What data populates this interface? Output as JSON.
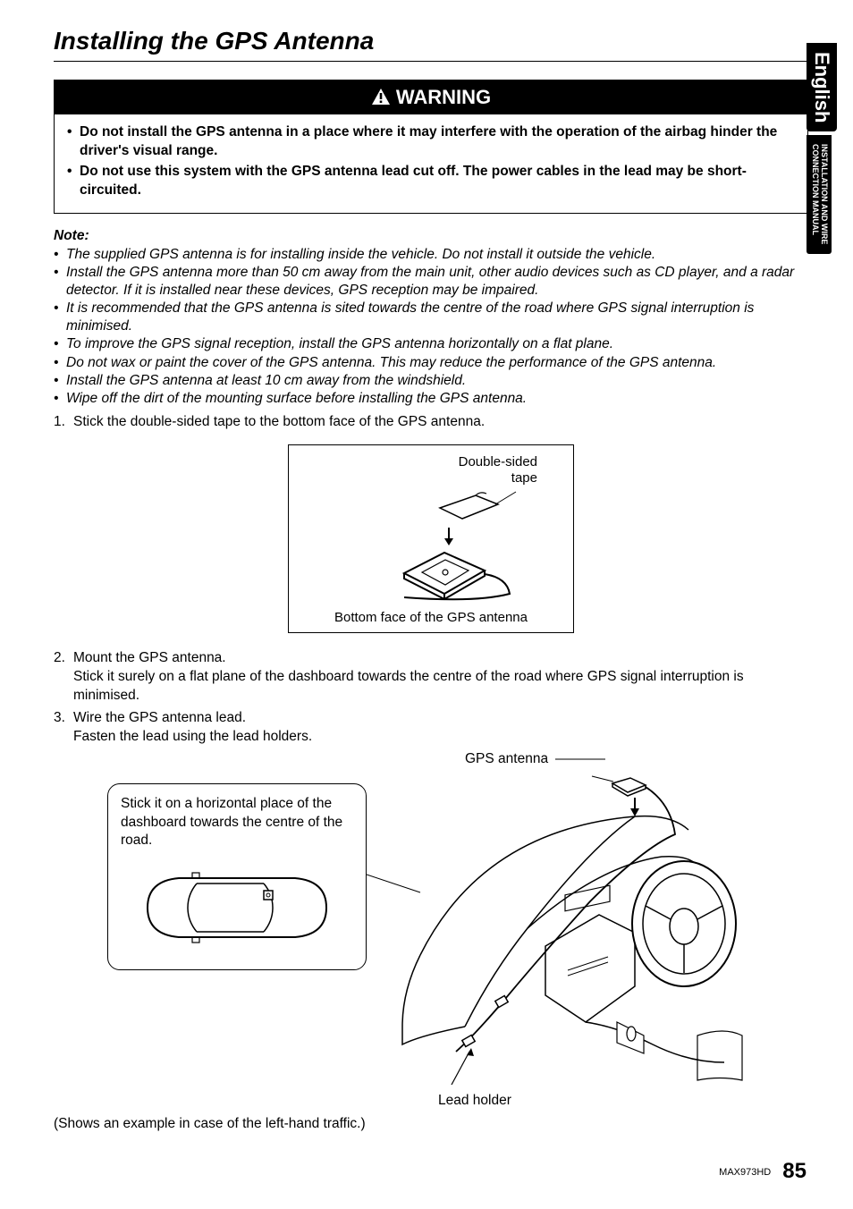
{
  "title": "Installing the GPS Antenna",
  "sideTabs": {
    "english": "English",
    "install": "INSTALLATION AND WIRE\nCONNECTION MANUAL"
  },
  "warning": {
    "header": "WARNING",
    "items": [
      "Do not install the GPS antenna in a place where it may interfere with the operation of the airbag hinder the driver's visual range.",
      "Do not use this system with the GPS antenna lead cut off. The power cables in the lead may be short-circuited."
    ]
  },
  "noteLabel": "Note:",
  "notes": [
    "The supplied GPS antenna is for installing inside the vehicle. Do not install it outside the vehicle.",
    "Install the GPS antenna more than 50 cm away from the main unit, other audio devices such as CD player, and a radar detector. If it is installed near these devices, GPS reception may be impaired.",
    "It is recommended that the GPS antenna is sited towards the centre of the road where GPS signal interruption is minimised.",
    "To improve the GPS signal reception, install the GPS antenna horizontally on a flat plane.",
    "Do not wax or paint the cover of the GPS antenna. This may reduce the performance of the GPS antenna.",
    "Install the GPS antenna at least 10 cm away from the windshield.",
    "Wipe off the dirt of the mounting surface before installing the GPS antenna."
  ],
  "steps": [
    {
      "n": "1.",
      "text": "Stick the double-sided tape to the bottom face of the GPS antenna."
    },
    {
      "n": "2.",
      "text": "Mount the GPS antenna.",
      "sub": "Stick it surely on a flat plane of the dashboard towards the centre of the road where GPS signal interruption is minimised."
    },
    {
      "n": "3.",
      "text": "Wire the GPS antenna lead.",
      "sub": "Fasten the lead using the lead holders."
    }
  ],
  "fig1": {
    "labelTop": "Double-sided\ntape",
    "labelBottom": "Bottom face of the GPS antenna"
  },
  "fig2": {
    "gpsLabel": "GPS antenna",
    "leadLabel": "Lead holder",
    "callout": "Stick it on a horizontal place of the dashboard towards the centre of the road."
  },
  "exampleNote": "(Shows an example in case of the left-hand traffic.)",
  "footer": {
    "model": "MAX973HD",
    "page": "85"
  },
  "colors": {
    "bg": "#ffffff",
    "fg": "#000000"
  }
}
